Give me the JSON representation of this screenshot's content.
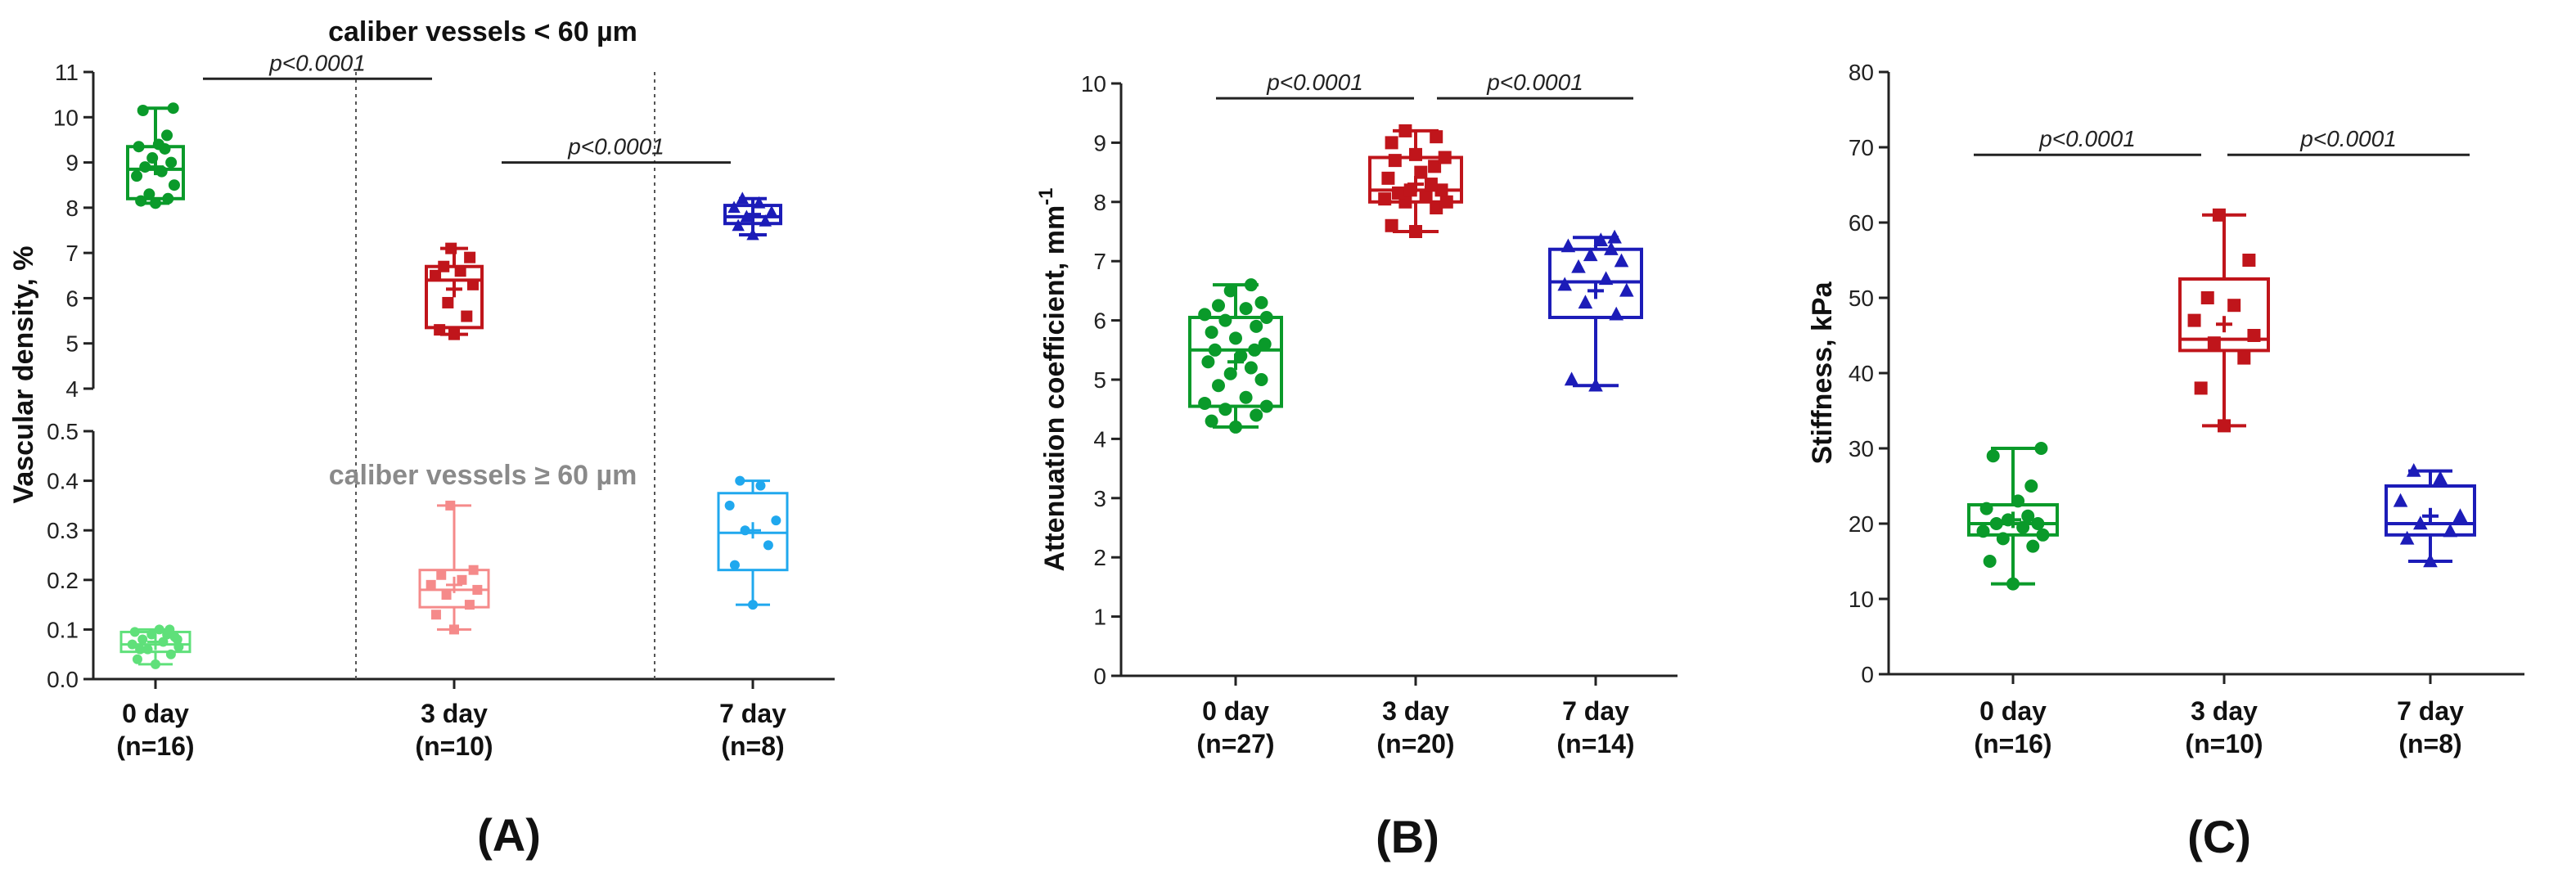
{
  "chart_data": [
    {
      "panel_label": "(A)",
      "type": "boxplot",
      "ylabel": "Vascular density, %",
      "upper_title": "caliber vessels < 60 µm",
      "lower_title": "caliber vessels ≥ 60 µm",
      "categories": [
        {
          "label": "0 day",
          "n": "(n=16)"
        },
        {
          "label": "3 day",
          "n": "(n=10)"
        },
        {
          "label": "7 day",
          "n": "(n=8)"
        }
      ],
      "upper_axis": {
        "ylim": [
          4,
          11
        ],
        "ticks": [
          "4",
          "5",
          "6",
          "7",
          "8",
          "9",
          "10",
          "11"
        ],
        "series": [
          {
            "name": "caliber vessels < 60 µm",
            "color": "#0a9a2a",
            "marker": "circle",
            "boxes": [
              {
                "min": 8.1,
                "q1": 8.2,
                "median": 8.85,
                "mean": 8.9,
                "q3": 9.35,
                "max": 10.2,
                "points": [
                  8.1,
                  8.15,
                  8.2,
                  8.3,
                  8.5,
                  8.7,
                  8.8,
                  8.9,
                  9.0,
                  9.1,
                  9.3,
                  9.35,
                  9.4,
                  9.6,
                  10.15,
                  10.2
                ]
              },
              {
                "min": 5.2,
                "q1": 5.35,
                "median": 6.4,
                "mean": 6.2,
                "q3": 6.7,
                "max": 7.1,
                "points": [
                  5.2,
                  5.3,
                  5.6,
                  5.9,
                  6.3,
                  6.5,
                  6.6,
                  6.7,
                  6.9,
                  7.1
                ],
                "color": "#c0151b",
                "marker": "square"
              },
              {
                "min": 7.4,
                "q1": 7.65,
                "median": 7.8,
                "mean": 7.85,
                "q3": 8.05,
                "max": 8.2,
                "points": [
                  7.4,
                  7.6,
                  7.7,
                  7.8,
                  7.9,
                  8.0,
                  8.1,
                  8.2
                ],
                "color": "#1c1cb8",
                "marker": "triangle"
              }
            ]
          }
        ]
      },
      "lower_axis": {
        "ylim": [
          0,
          0.5
        ],
        "ticks": [
          "0.0",
          "0.1",
          "0.2",
          "0.3",
          "0.4",
          "0.5"
        ],
        "boxes": [
          {
            "min": 0.03,
            "q1": 0.055,
            "median": 0.07,
            "mean": 0.075,
            "q3": 0.095,
            "max": 0.1,
            "points": [
              0.03,
              0.04,
              0.05,
              0.06,
              0.065,
              0.07,
              0.075,
              0.08,
              0.085,
              0.09,
              0.09,
              0.095,
              0.1,
              0.1,
              0.06,
              0.08
            ],
            "color": "#5fe07a",
            "marker": "circle"
          },
          {
            "min": 0.1,
            "q1": 0.145,
            "median": 0.18,
            "mean": 0.19,
            "q3": 0.22,
            "max": 0.35,
            "points": [
              0.1,
              0.13,
              0.15,
              0.17,
              0.18,
              0.19,
              0.2,
              0.21,
              0.22,
              0.35
            ],
            "color": "#f58a8a",
            "marker": "square"
          },
          {
            "min": 0.15,
            "q1": 0.22,
            "median": 0.295,
            "mean": 0.3,
            "q3": 0.375,
            "max": 0.4,
            "points": [
              0.15,
              0.23,
              0.27,
              0.3,
              0.32,
              0.35,
              0.39,
              0.4
            ],
            "color": "#20a8ee",
            "marker": "circle"
          }
        ]
      },
      "significance": [
        {
          "label": "p<0.0001",
          "from": "0 day",
          "to": "midpoint 0-3 day",
          "axis": "upper",
          "y": 10.85
        },
        {
          "label": "p<0.0001",
          "from": "3 day",
          "to": "7 day",
          "axis": "upper",
          "y": 9.0
        }
      ]
    },
    {
      "panel_label": "(B)",
      "type": "boxplot",
      "ylabel": "Attenuation coefficient, mm",
      "ylabel_sup": "-1",
      "ylim": [
        0,
        10
      ],
      "ticks": [
        "0",
        "1",
        "2",
        "3",
        "4",
        "5",
        "6",
        "7",
        "8",
        "9",
        "10"
      ],
      "categories": [
        {
          "label": "0 day",
          "n": "(n=27)"
        },
        {
          "label": "3 day",
          "n": "(n=20)"
        },
        {
          "label": "7 day",
          "n": "(n=14)"
        }
      ],
      "boxes": [
        {
          "min": 4.2,
          "q1": 4.55,
          "median": 5.5,
          "mean": 5.3,
          "q3": 6.05,
          "max": 6.6,
          "color": "#0a9a2a",
          "marker": "circle",
          "points": [
            4.2,
            4.3,
            4.4,
            4.5,
            4.55,
            4.6,
            4.7,
            4.9,
            5.0,
            5.1,
            5.2,
            5.3,
            5.4,
            5.5,
            5.5,
            5.6,
            5.7,
            5.8,
            5.9,
            6.0,
            6.05,
            6.1,
            6.2,
            6.25,
            6.3,
            6.5,
            6.6
          ]
        },
        {
          "min": 7.5,
          "q1": 8.0,
          "median": 8.2,
          "mean": 8.3,
          "q3": 8.75,
          "max": 9.2,
          "color": "#c0151b",
          "marker": "square",
          "points": [
            7.5,
            7.6,
            7.9,
            8.0,
            8.0,
            8.05,
            8.1,
            8.15,
            8.2,
            8.2,
            8.3,
            8.4,
            8.5,
            8.6,
            8.7,
            8.75,
            8.8,
            9.0,
            9.1,
            9.2
          ]
        },
        {
          "min": 4.9,
          "q1": 6.05,
          "median": 6.65,
          "mean": 6.5,
          "q3": 7.2,
          "max": 7.4,
          "color": "#1c1cb8",
          "marker": "triangle",
          "points": [
            4.9,
            5.0,
            6.1,
            6.3,
            6.5,
            6.6,
            6.7,
            6.9,
            7.0,
            7.1,
            7.2,
            7.25,
            7.35,
            7.4
          ]
        }
      ],
      "significance": [
        {
          "label": "p<0.0001",
          "from": "0 day",
          "to": "3 day",
          "y": 9.75
        },
        {
          "label": "p<0.0001",
          "from": "3 day",
          "to": "7 day",
          "y": 9.75
        }
      ]
    },
    {
      "panel_label": "(C)",
      "type": "boxplot",
      "ylabel": "Stiffness, kPa",
      "ylim": [
        0,
        80
      ],
      "ticks": [
        "0",
        "10",
        "20",
        "30",
        "40",
        "50",
        "60",
        "70",
        "80"
      ],
      "categories": [
        {
          "label": "0 day",
          "n": "(n=16)"
        },
        {
          "label": "3 day",
          "n": "(n=10)"
        },
        {
          "label": "7 day",
          "n": "(n=8)"
        }
      ],
      "boxes": [
        {
          "min": 12,
          "q1": 18.5,
          "median": 20,
          "mean": 20.5,
          "q3": 22.5,
          "max": 30,
          "color": "#0a9a2a",
          "marker": "circle",
          "points": [
            12,
            15,
            17,
            18,
            18.5,
            19,
            19.5,
            20,
            20,
            20.5,
            21,
            22,
            23,
            25,
            29,
            30
          ]
        },
        {
          "min": 33,
          "q1": 43,
          "median": 44.5,
          "mean": 46.5,
          "q3": 52.5,
          "max": 61,
          "color": "#c0151b",
          "marker": "square",
          "points": [
            33,
            38,
            42,
            44,
            45,
            47,
            49,
            50,
            55,
            61
          ]
        },
        {
          "min": 15,
          "q1": 18.5,
          "median": 20,
          "mean": 21,
          "q3": 25,
          "max": 27,
          "color": "#1c1cb8",
          "marker": "triangle",
          "points": [
            15,
            18,
            19,
            20,
            21,
            23,
            26,
            27
          ]
        }
      ],
      "significance": [
        {
          "label": "p<0.0001",
          "from": "0 day",
          "to": "3 day",
          "y": 69
        },
        {
          "label": "p<0.0001",
          "from": "3 day",
          "to": "7 day",
          "y": 69
        }
      ]
    }
  ]
}
